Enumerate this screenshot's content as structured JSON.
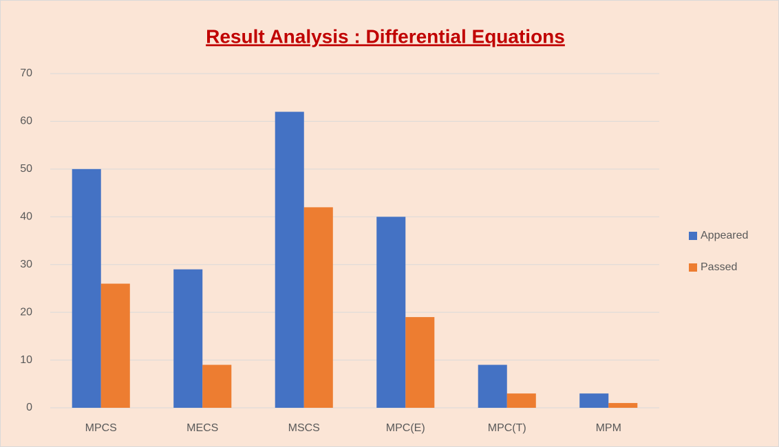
{
  "chart_data": {
    "type": "bar",
    "title": "Result Analysis : Differential Equations",
    "categories": [
      "MPCS",
      "MECS",
      "MSCS",
      "MPC(E)",
      "MPC(T)",
      "MPM"
    ],
    "series": [
      {
        "name": "Appeared",
        "color": "#4472c4",
        "values": [
          50,
          29,
          62,
          40,
          9,
          3
        ]
      },
      {
        "name": "Passed",
        "color": "#ed7d31",
        "values": [
          26,
          9,
          42,
          19,
          3,
          1
        ]
      }
    ],
    "ylim": [
      0,
      70
    ],
    "yticks": [
      0,
      10,
      20,
      30,
      40,
      50,
      60,
      70
    ],
    "grid": true,
    "legend": "right"
  }
}
